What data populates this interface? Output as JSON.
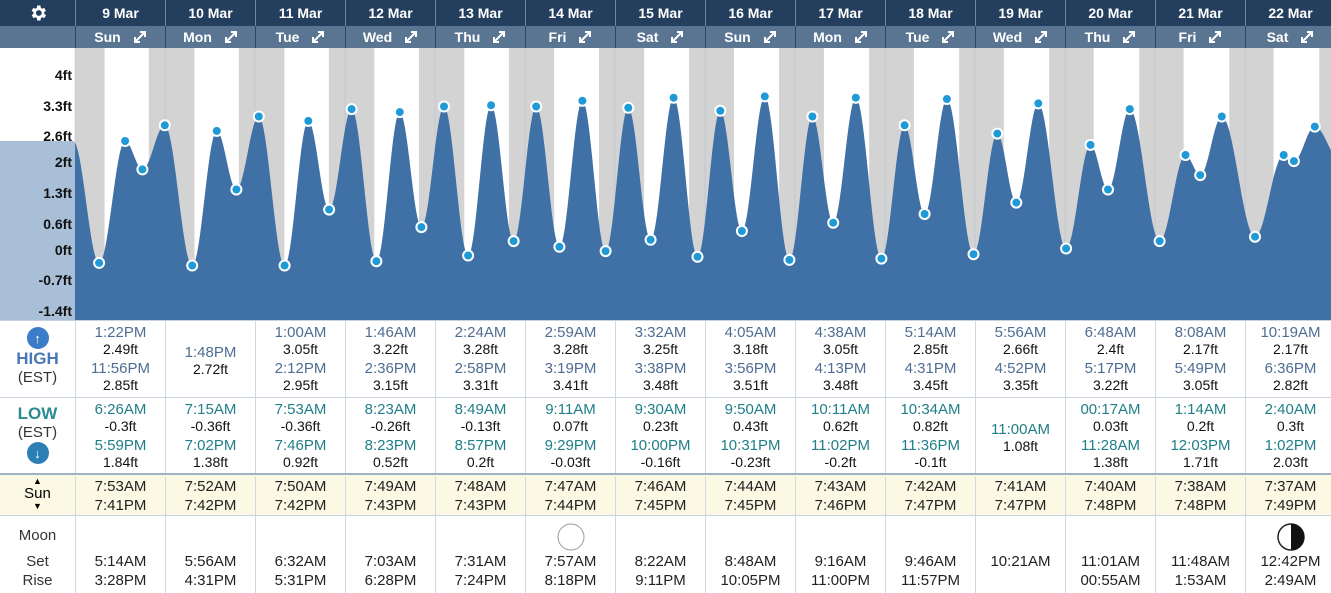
{
  "header": {
    "settings_icon": "gear-icon",
    "days": [
      {
        "date": "9 Mar",
        "weekday": "Sun"
      },
      {
        "date": "10 Mar",
        "weekday": "Mon"
      },
      {
        "date": "11 Mar",
        "weekday": "Tue"
      },
      {
        "date": "12 Mar",
        "weekday": "Wed"
      },
      {
        "date": "13 Mar",
        "weekday": "Thu"
      },
      {
        "date": "14 Mar",
        "weekday": "Fri"
      },
      {
        "date": "15 Mar",
        "weekday": "Sat"
      },
      {
        "date": "16 Mar",
        "weekday": "Sun"
      },
      {
        "date": "17 Mar",
        "weekday": "Mon"
      },
      {
        "date": "18 Mar",
        "weekday": "Tue"
      },
      {
        "date": "19 Mar",
        "weekday": "Wed"
      },
      {
        "date": "20 Mar",
        "weekday": "Thu"
      },
      {
        "date": "21 Mar",
        "weekday": "Fri"
      },
      {
        "date": "22 Mar",
        "weekday": "Sat"
      }
    ]
  },
  "chart": {
    "y_ticks": [
      "4ft",
      "3.3ft",
      "2.6ft",
      "2ft",
      "1.3ft",
      "0.6ft",
      "0ft",
      "-0.7ft",
      "-1.4ft"
    ],
    "y_values": [
      4,
      3.3,
      2.6,
      2,
      1.3,
      0.6,
      0,
      -0.7,
      -1.4
    ],
    "colors": {
      "fill": "#3f71a6",
      "night": "#d3d3d3",
      "point": "#1f9ad6"
    }
  },
  "high": {
    "label": "HIGH",
    "sublabel": "(EST)",
    "icon": "arrow-up-icon",
    "days": [
      [
        {
          "time": "1:22PM",
          "height": "2.49ft"
        },
        {
          "time": "11:56PM",
          "height": "2.85ft"
        }
      ],
      [
        {
          "time": "1:48PM",
          "height": "2.72ft"
        }
      ],
      [
        {
          "time": "1:00AM",
          "height": "3.05ft"
        },
        {
          "time": "2:12PM",
          "height": "2.95ft"
        }
      ],
      [
        {
          "time": "1:46AM",
          "height": "3.22ft"
        },
        {
          "time": "2:36PM",
          "height": "3.15ft"
        }
      ],
      [
        {
          "time": "2:24AM",
          "height": "3.28ft"
        },
        {
          "time": "2:58PM",
          "height": "3.31ft"
        }
      ],
      [
        {
          "time": "2:59AM",
          "height": "3.28ft"
        },
        {
          "time": "3:19PM",
          "height": "3.41ft"
        }
      ],
      [
        {
          "time": "3:32AM",
          "height": "3.25ft"
        },
        {
          "time": "3:38PM",
          "height": "3.48ft"
        }
      ],
      [
        {
          "time": "4:05AM",
          "height": "3.18ft"
        },
        {
          "time": "3:56PM",
          "height": "3.51ft"
        }
      ],
      [
        {
          "time": "4:38AM",
          "height": "3.05ft"
        },
        {
          "time": "4:13PM",
          "height": "3.48ft"
        }
      ],
      [
        {
          "time": "5:14AM",
          "height": "2.85ft"
        },
        {
          "time": "4:31PM",
          "height": "3.45ft"
        }
      ],
      [
        {
          "time": "5:56AM",
          "height": "2.66ft"
        },
        {
          "time": "4:52PM",
          "height": "3.35ft"
        }
      ],
      [
        {
          "time": "6:48AM",
          "height": "2.4ft"
        },
        {
          "time": "5:17PM",
          "height": "3.22ft"
        }
      ],
      [
        {
          "time": "8:08AM",
          "height": "2.17ft"
        },
        {
          "time": "5:49PM",
          "height": "3.05ft"
        }
      ],
      [
        {
          "time": "10:19AM",
          "height": "2.17ft"
        },
        {
          "time": "6:36PM",
          "height": "2.82ft"
        }
      ]
    ]
  },
  "low": {
    "label": "LOW",
    "sublabel": "(EST)",
    "icon": "arrow-down-icon",
    "days": [
      [
        {
          "time": "6:26AM",
          "height": "-0.3ft"
        },
        {
          "time": "5:59PM",
          "height": "1.84ft"
        }
      ],
      [
        {
          "time": "7:15AM",
          "height": "-0.36ft"
        },
        {
          "time": "7:02PM",
          "height": "1.38ft"
        }
      ],
      [
        {
          "time": "7:53AM",
          "height": "-0.36ft"
        },
        {
          "time": "7:46PM",
          "height": "0.92ft"
        }
      ],
      [
        {
          "time": "8:23AM",
          "height": "-0.26ft"
        },
        {
          "time": "8:23PM",
          "height": "0.52ft"
        }
      ],
      [
        {
          "time": "8:49AM",
          "height": "-0.13ft"
        },
        {
          "time": "8:57PM",
          "height": "0.2ft"
        }
      ],
      [
        {
          "time": "9:11AM",
          "height": "0.07ft"
        },
        {
          "time": "9:29PM",
          "height": "-0.03ft"
        }
      ],
      [
        {
          "time": "9:30AM",
          "height": "0.23ft"
        },
        {
          "time": "10:00PM",
          "height": "-0.16ft"
        }
      ],
      [
        {
          "time": "9:50AM",
          "height": "0.43ft"
        },
        {
          "time": "10:31PM",
          "height": "-0.23ft"
        }
      ],
      [
        {
          "time": "10:11AM",
          "height": "0.62ft"
        },
        {
          "time": "11:02PM",
          "height": "-0.2ft"
        }
      ],
      [
        {
          "time": "10:34AM",
          "height": "0.82ft"
        },
        {
          "time": "11:36PM",
          "height": "-0.1ft"
        }
      ],
      [
        {
          "time": "11:00AM",
          "height": "1.08ft"
        }
      ],
      [
        {
          "time": "00:17AM",
          "height": "0.03ft"
        },
        {
          "time": "11:28AM",
          "height": "1.38ft"
        }
      ],
      [
        {
          "time": "1:14AM",
          "height": "0.2ft"
        },
        {
          "time": "12:03PM",
          "height": "1.71ft"
        }
      ],
      [
        {
          "time": "2:40AM",
          "height": "0.3ft"
        },
        {
          "time": "1:02PM",
          "height": "2.03ft"
        }
      ]
    ]
  },
  "sun": {
    "label": "Sun",
    "icon": "sun-up-down-icon",
    "days": [
      {
        "rise": "7:53AM",
        "set": "7:41PM"
      },
      {
        "rise": "7:52AM",
        "set": "7:42PM"
      },
      {
        "rise": "7:50AM",
        "set": "7:42PM"
      },
      {
        "rise": "7:49AM",
        "set": "7:43PM"
      },
      {
        "rise": "7:48AM",
        "set": "7:43PM"
      },
      {
        "rise": "7:47AM",
        "set": "7:44PM"
      },
      {
        "rise": "7:46AM",
        "set": "7:45PM"
      },
      {
        "rise": "7:44AM",
        "set": "7:45PM"
      },
      {
        "rise": "7:43AM",
        "set": "7:46PM"
      },
      {
        "rise": "7:42AM",
        "set": "7:47PM"
      },
      {
        "rise": "7:41AM",
        "set": "7:47PM"
      },
      {
        "rise": "7:40AM",
        "set": "7:48PM"
      },
      {
        "rise": "7:38AM",
        "set": "7:48PM"
      },
      {
        "rise": "7:37AM",
        "set": "7:49PM"
      }
    ]
  },
  "moon": {
    "label": "Moon",
    "set_label": "Set",
    "rise_label": "Rise",
    "days": [
      {
        "set": "5:14AM",
        "rise": "3:28PM",
        "phase": ""
      },
      {
        "set": "5:56AM",
        "rise": "4:31PM",
        "phase": ""
      },
      {
        "set": "6:32AM",
        "rise": "5:31PM",
        "phase": ""
      },
      {
        "set": "7:03AM",
        "rise": "6:28PM",
        "phase": ""
      },
      {
        "set": "7:31AM",
        "rise": "7:24PM",
        "phase": ""
      },
      {
        "set": "7:57AM",
        "rise": "8:18PM",
        "phase": "full-moon-icon"
      },
      {
        "set": "8:22AM",
        "rise": "9:11PM",
        "phase": ""
      },
      {
        "set": "8:48AM",
        "rise": "10:05PM",
        "phase": ""
      },
      {
        "set": "9:16AM",
        "rise": "11:00PM",
        "phase": ""
      },
      {
        "set": "9:46AM",
        "rise": "11:57PM",
        "phase": ""
      },
      {
        "set": "10:21AM",
        "rise": "",
        "phase": ""
      },
      {
        "set": "11:01AM",
        "rise": "00:55AM",
        "phase": ""
      },
      {
        "set": "11:48AM",
        "rise": "1:53AM",
        "phase": ""
      },
      {
        "set": "12:42PM",
        "rise": "2:49AM",
        "phase": "last-quarter-moon-icon"
      }
    ]
  }
}
